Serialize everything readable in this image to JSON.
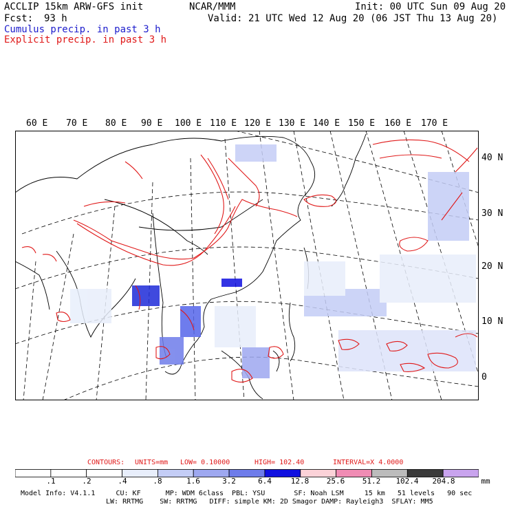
{
  "header": {
    "line1_left": "ACCLIP 15km ARW-GFS init",
    "line1_center": "NCAR/MMM",
    "line1_right": "Init: 00 UTC Sun 09 Aug 20",
    "fcst_label": "Fcst:",
    "fcst_value": "93 h",
    "valid": "Valid: 21 UTC Wed 12 Aug 20 (06 JST Thu 13 Aug 20)",
    "cumulus": "Cumulus precip. in past 3 h",
    "explicit": "Explicit precip. in past 3 h"
  },
  "map": {
    "lon_labels": [
      "60 E",
      "70 E",
      "80 E",
      "90 E",
      "100 E",
      "110 E",
      "120 E",
      "130 E",
      "140 E",
      "150 E",
      "160 E",
      "170 E"
    ],
    "lat_labels": [
      "40 N",
      "30 N",
      "20 N",
      "10 N",
      "0"
    ]
  },
  "colors": {
    "cumulus": "#1c1ccc",
    "explicit": "#e01818",
    "coast": "#000000",
    "grid": "#000000"
  },
  "legend": {
    "contours_label": "CONTOURS:",
    "units": "UNITS=mm",
    "low": "LOW= 0.10000",
    "high": "HIGH= 102.40",
    "interval": "INTERVAL=X 4.0000",
    "unit_suffix": "mm",
    "bins": [
      {
        "label": ".1",
        "color": "#ffffff"
      },
      {
        "label": ".2",
        "color": "#ffffff"
      },
      {
        "label": ".4",
        "color": "#ffffff"
      },
      {
        "label": ".8",
        "color": "#e8eefb"
      },
      {
        "label": "1.6",
        "color": "#c4cdf6"
      },
      {
        "label": "3.2",
        "color": "#9ea8f0"
      },
      {
        "label": "6.4",
        "color": "#6e7cea"
      },
      {
        "label": "12.8",
        "color": "#1010e0"
      },
      {
        "label": "25.6",
        "color": "#fbd2d8"
      },
      {
        "label": "51.2",
        "color": "#f08cb4"
      },
      {
        "label": "102.4",
        "color": "#bcbcbc"
      },
      {
        "label": "204.8",
        "color": "#3a3a3a"
      },
      {
        "label": "",
        "color": "#c9a4ee"
      }
    ]
  },
  "model_info": {
    "line1": "Model Info: V4.1.1     CU: KF      MP: WDM 6class  PBL: YSU       SF: Noah LSM     15 km   51 levels   90 sec",
    "line2": "LW: RRTMG    SW: RRTMG   DIFF: simple KM: 2D Smagor DAMP: Rayleigh3  SFLAY: MM5"
  }
}
